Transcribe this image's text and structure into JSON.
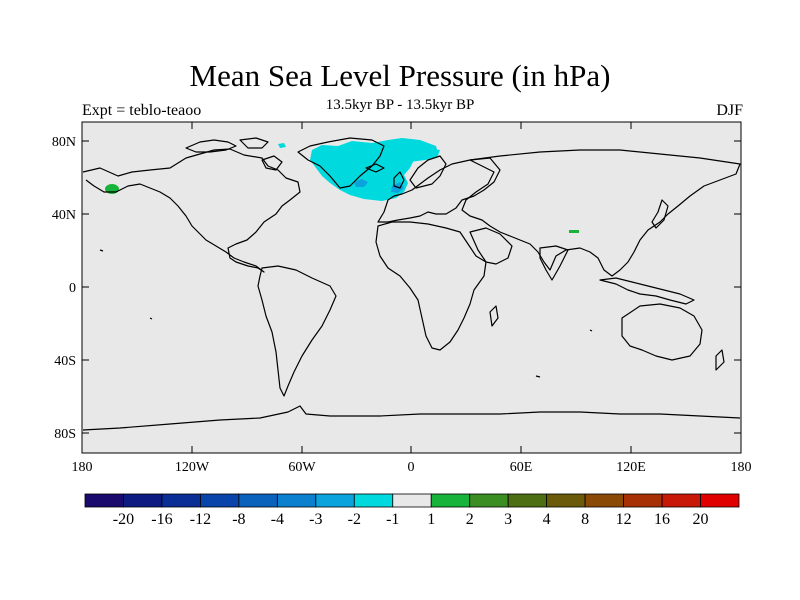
{
  "title": "Mean Sea Level Pressure (in hPa)",
  "subtitle": "13.5kyr BP - 13.5kyr BP",
  "left_label": "Expt = teblo-teaoo",
  "right_label": "DJF",
  "lat_ticks": [
    "80N",
    "40N",
    "0",
    "40S",
    "80S"
  ],
  "lon_ticks": [
    "180",
    "120W",
    "60W",
    "0",
    "60E",
    "120E",
    "180"
  ],
  "colorbar": {
    "colors": [
      "#1b0a6e",
      "#0c1a82",
      "#0a2d96",
      "#0844aa",
      "#0a62bd",
      "#0b80cf",
      "#0aa3dd",
      "#00d9dd",
      "#e8e8e8",
      "#17b33a",
      "#3b8f22",
      "#4d6e12",
      "#6b5a0a",
      "#8a4a06",
      "#a83005",
      "#c81808",
      "#e00000"
    ],
    "labels": [
      "-20",
      "-16",
      "-12",
      "-8",
      "-4",
      "-3",
      "-2",
      "-1",
      "1",
      "2",
      "3",
      "4",
      "8",
      "12",
      "16",
      "20"
    ]
  },
  "colors": {
    "background": "#e8e8e8",
    "negative_anomaly": "#00d9dd",
    "strong_negative": "#0aa3dd",
    "positive_anomaly": "#17b33a"
  }
}
